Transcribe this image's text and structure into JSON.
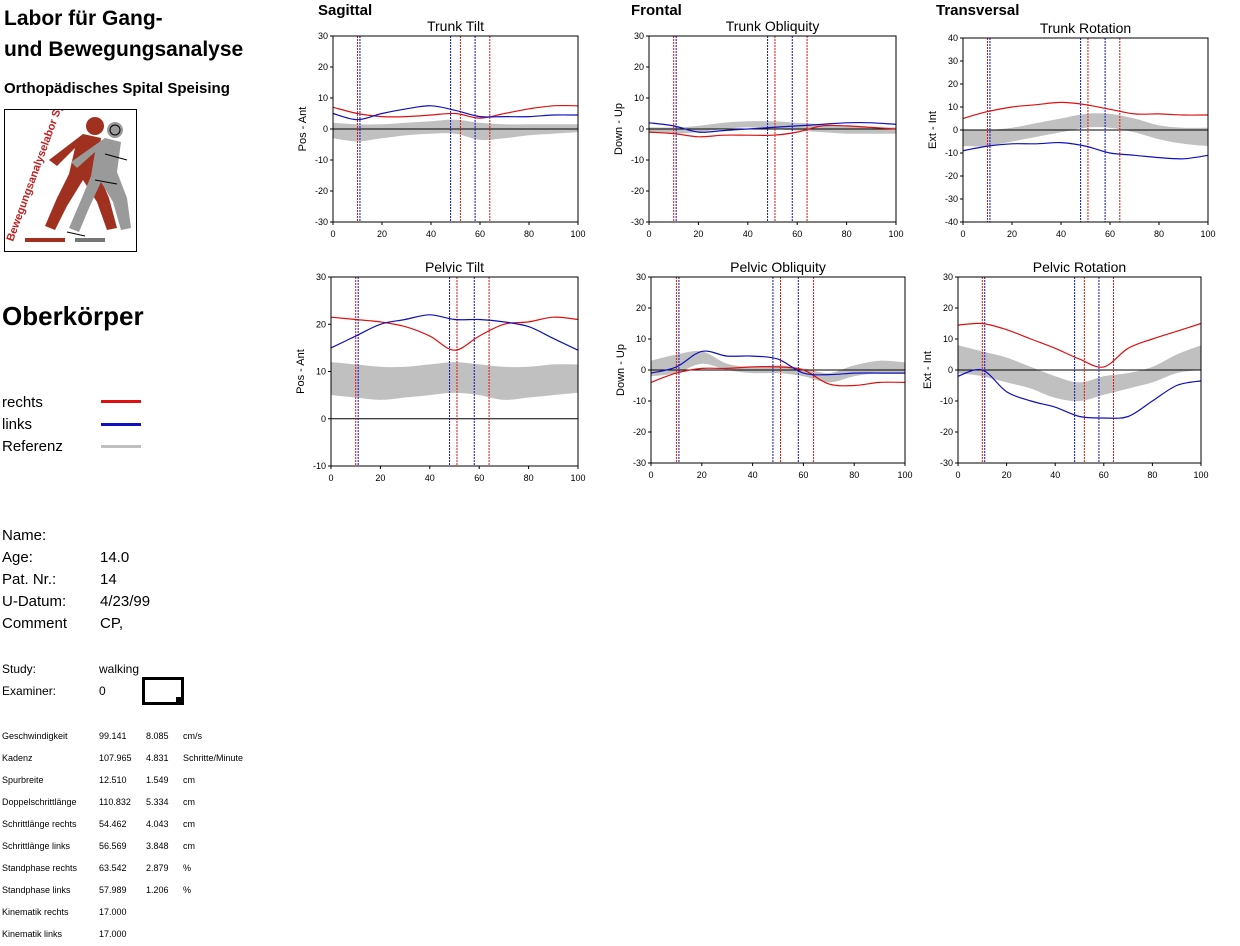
{
  "header": {
    "lab_title_line1": "Labor für Gang-",
    "lab_title_line2": "und Bewegungsanalyse",
    "hospital": "Orthopädisches Spital Speising",
    "logo_text": "Bewegungsanalyselabor Speising"
  },
  "section_title": "Oberkörper",
  "legend": [
    {
      "label": "rechts",
      "color": "#e01010"
    },
    {
      "label": "links",
      "color": "#1010c0"
    },
    {
      "label": "Referenz",
      "color": "#c0c0c0"
    }
  ],
  "patient": [
    {
      "label": "Name:",
      "value": ""
    },
    {
      "label": "Age:",
      "value": "14.0"
    },
    {
      "label": "Pat. Nr.:",
      "value": "14"
    },
    {
      "label": "U-Datum:",
      "value": "4/23/99"
    },
    {
      "label": "Comment",
      "value": "CP,"
    }
  ],
  "study": {
    "label": "Study:",
    "value": "walking"
  },
  "examiner": {
    "label": "Examiner:",
    "value": "0"
  },
  "stats": [
    {
      "name": "Geschwindigkeit",
      "mean": "99.141",
      "sd": "8.085",
      "unit": "cm/s"
    },
    {
      "name": "Kadenz",
      "mean": "107.965",
      "sd": "4.831",
      "unit": "Schritte/Minute"
    },
    {
      "name": "Spurbreite",
      "mean": "12.510",
      "sd": "1.549",
      "unit": "cm"
    },
    {
      "name": "Doppelschrittlänge",
      "mean": "110.832",
      "sd": "5.334",
      "unit": "cm"
    },
    {
      "name": "Schrittlänge rechts",
      "mean": "54.462",
      "sd": "4.043",
      "unit": "cm"
    },
    {
      "name": "Schrittlänge links",
      "mean": "56.569",
      "sd": "3.848",
      "unit": "cm"
    },
    {
      "name": "Standphase rechts",
      "mean": "63.542",
      "sd": "2.879",
      "unit": "%"
    },
    {
      "name": "Standphase links",
      "mean": "57.989",
      "sd": "1.206",
      "unit": "%"
    },
    {
      "name": "Kinematik rechts",
      "mean": "17.000",
      "sd": "",
      "unit": ""
    },
    {
      "name": "Kinematik links",
      "mean": "17.000",
      "sd": "",
      "unit": ""
    }
  ],
  "planes": [
    "Sagittal",
    "Frontal",
    "Transversal"
  ],
  "colors": {
    "right": "#e01010",
    "left": "#1010c0",
    "reference": "#c0c0c0"
  },
  "chart_data": [
    {
      "type": "line",
      "title": "Trunk Tilt",
      "ylabel": "Pos - Ant",
      "xlim": [
        0,
        100
      ],
      "ylim": [
        -30,
        30
      ],
      "yticks": [
        -30,
        -20,
        -10,
        0,
        10,
        20,
        30
      ],
      "xticks": [
        0,
        20,
        40,
        60,
        80,
        100
      ],
      "events": [
        {
          "x": 10,
          "color": "red"
        },
        {
          "x": 11,
          "color": "blue"
        },
        {
          "x": 48,
          "color": "blue"
        },
        {
          "x": 52,
          "color": "red"
        },
        {
          "x": 58,
          "color": "blue"
        },
        {
          "x": 64,
          "color": "red"
        }
      ],
      "series": [
        {
          "name": "rechts",
          "x": [
            0,
            10,
            20,
            30,
            40,
            50,
            60,
            70,
            80,
            90,
            100
          ],
          "values": [
            7,
            5,
            4,
            4,
            4.5,
            5,
            3.5,
            5,
            6.5,
            7.5,
            7.5
          ]
        },
        {
          "name": "links",
          "x": [
            0,
            10,
            20,
            30,
            40,
            50,
            60,
            70,
            80,
            90,
            100
          ],
          "values": [
            5,
            3,
            5,
            6.5,
            7.5,
            6,
            4,
            4,
            4,
            4.5,
            4.5
          ]
        }
      ],
      "reference": {
        "x": [
          0,
          10,
          20,
          30,
          40,
          50,
          60,
          70,
          80,
          90,
          100
        ],
        "upper": [
          2,
          1.5,
          1.5,
          2,
          2.5,
          3,
          2,
          1.5,
          1.5,
          1.5,
          1.5
        ],
        "lower": [
          -3,
          -4,
          -3,
          -2,
          -1.5,
          -1.5,
          -3.5,
          -3,
          -2,
          -1.5,
          -1
        ]
      }
    },
    {
      "type": "line",
      "title": "Trunk Obliquity",
      "ylabel": "Down - Up",
      "xlim": [
        0,
        100
      ],
      "ylim": [
        -30,
        30
      ],
      "yticks": [
        -30,
        -20,
        -10,
        0,
        10,
        20,
        30
      ],
      "xticks": [
        0,
        20,
        40,
        60,
        80,
        100
      ],
      "events": [
        {
          "x": 10,
          "color": "red"
        },
        {
          "x": 11,
          "color": "blue"
        },
        {
          "x": 48,
          "color": "blue"
        },
        {
          "x": 51,
          "color": "red"
        },
        {
          "x": 58,
          "color": "blue"
        },
        {
          "x": 64,
          "color": "red"
        }
      ],
      "series": [
        {
          "name": "rechts",
          "x": [
            0,
            10,
            20,
            30,
            40,
            50,
            60,
            70,
            80,
            90,
            100
          ],
          "values": [
            -1,
            -1.5,
            -2.5,
            -2,
            -2,
            -2,
            -1,
            1,
            1,
            0.5,
            0
          ]
        },
        {
          "name": "links",
          "x": [
            0,
            10,
            20,
            30,
            40,
            50,
            60,
            70,
            80,
            90,
            100
          ],
          "values": [
            2,
            1,
            -1,
            -0.5,
            0,
            0.5,
            1,
            1.5,
            2,
            2,
            1.5
          ]
        }
      ],
      "reference": {
        "x": [
          0,
          10,
          20,
          30,
          40,
          50,
          60,
          70,
          80,
          90,
          100
        ],
        "upper": [
          0.5,
          0.5,
          1,
          2,
          2.5,
          2.5,
          2,
          1.5,
          1,
          0.5,
          0.5
        ],
        "lower": [
          -1,
          -1.5,
          -1,
          0,
          0.5,
          0,
          -0.5,
          -1,
          -1.5,
          -1.5,
          -1.5
        ]
      }
    },
    {
      "type": "line",
      "title": "Trunk Rotation",
      "ylabel": "Ext - Int",
      "xlim": [
        0,
        100
      ],
      "ylim": [
        -40,
        40
      ],
      "yticks": [
        -40,
        -30,
        -20,
        -10,
        0,
        10,
        20,
        30,
        40
      ],
      "xticks": [
        0,
        20,
        40,
        60,
        80,
        100
      ],
      "events": [
        {
          "x": 10,
          "color": "red"
        },
        {
          "x": 11,
          "color": "blue"
        },
        {
          "x": 48,
          "color": "blue"
        },
        {
          "x": 51,
          "color": "red"
        },
        {
          "x": 58,
          "color": "blue"
        },
        {
          "x": 64,
          "color": "red"
        }
      ],
      "series": [
        {
          "name": "rechts",
          "x": [
            0,
            10,
            20,
            30,
            40,
            50,
            60,
            70,
            80,
            90,
            100
          ],
          "values": [
            5,
            8,
            10,
            11,
            12,
            11,
            9,
            7,
            7,
            6.5,
            6.5
          ]
        },
        {
          "name": "links",
          "x": [
            0,
            10,
            20,
            30,
            40,
            50,
            60,
            70,
            80,
            90,
            100
          ],
          "values": [
            -9,
            -7,
            -6,
            -6,
            -5.5,
            -7,
            -10,
            -11,
            -12,
            -12.5,
            -11
          ]
        }
      ],
      "reference": {
        "x": [
          0,
          10,
          20,
          30,
          40,
          50,
          60,
          70,
          80,
          90,
          100
        ],
        "upper": [
          0,
          0,
          1,
          3,
          5,
          7,
          7,
          5,
          2,
          1,
          1
        ],
        "lower": [
          -7,
          -7,
          -5,
          -3,
          -1,
          1,
          1,
          -1,
          -4,
          -6,
          -7
        ]
      }
    },
    {
      "type": "line",
      "title": "Pelvic Tilt",
      "ylabel": "Pos - Ant",
      "xlim": [
        0,
        100
      ],
      "ylim": [
        -10,
        30
      ],
      "yticks": [
        -10,
        0,
        10,
        20,
        30
      ],
      "xticks": [
        0,
        20,
        40,
        60,
        80,
        100
      ],
      "events": [
        {
          "x": 10,
          "color": "red"
        },
        {
          "x": 11,
          "color": "blue"
        },
        {
          "x": 48,
          "color": "blue"
        },
        {
          "x": 51,
          "color": "red"
        },
        {
          "x": 58,
          "color": "blue"
        },
        {
          "x": 64,
          "color": "red"
        }
      ],
      "series": [
        {
          "name": "rechts",
          "x": [
            0,
            10,
            20,
            30,
            40,
            50,
            60,
            70,
            80,
            90,
            100
          ],
          "values": [
            21.5,
            21,
            20.5,
            19.5,
            17.5,
            14.5,
            17.5,
            20,
            20.5,
            21.5,
            21
          ]
        },
        {
          "name": "links",
          "x": [
            0,
            10,
            20,
            30,
            40,
            50,
            60,
            70,
            80,
            90,
            100
          ],
          "values": [
            15,
            17.5,
            20,
            21,
            22,
            21,
            21,
            20.5,
            19.5,
            17,
            14.5
          ]
        }
      ],
      "reference": {
        "x": [
          0,
          10,
          20,
          30,
          40,
          50,
          60,
          70,
          80,
          90,
          100
        ],
        "upper": [
          12,
          11.5,
          11,
          11,
          11.5,
          12,
          11.5,
          11,
          11,
          11.5,
          11.5
        ],
        "lower": [
          5,
          4.5,
          4,
          4.5,
          5,
          5.5,
          5,
          4,
          4.5,
          5,
          5.5
        ]
      }
    },
    {
      "type": "line",
      "title": "Pelvic Obliquity",
      "ylabel": "Down - Up",
      "xlim": [
        0,
        100
      ],
      "ylim": [
        -30,
        30
      ],
      "yticks": [
        -30,
        -20,
        -10,
        0,
        10,
        20,
        30
      ],
      "xticks": [
        0,
        20,
        40,
        60,
        80,
        100
      ],
      "events": [
        {
          "x": 10,
          "color": "red"
        },
        {
          "x": 11,
          "color": "blue"
        },
        {
          "x": 48,
          "color": "blue"
        },
        {
          "x": 51,
          "color": "red"
        },
        {
          "x": 58,
          "color": "blue"
        },
        {
          "x": 64,
          "color": "red"
        }
      ],
      "series": [
        {
          "name": "rechts",
          "x": [
            0,
            10,
            20,
            30,
            40,
            50,
            60,
            70,
            80,
            90,
            100
          ],
          "values": [
            -4,
            -1,
            0.5,
            0.5,
            1,
            1,
            0,
            -4.5,
            -5,
            -4,
            -4
          ]
        },
        {
          "name": "links",
          "x": [
            0,
            10,
            20,
            30,
            40,
            50,
            60,
            70,
            80,
            90,
            100
          ],
          "values": [
            -1,
            1,
            6,
            4.5,
            4.5,
            3.5,
            -1,
            -1.5,
            -1,
            -1,
            -1
          ]
        }
      ],
      "reference": {
        "x": [
          0,
          10,
          20,
          30,
          40,
          50,
          60,
          70,
          80,
          90,
          100
        ],
        "upper": [
          3,
          5,
          6,
          2,
          1,
          1.5,
          0.5,
          -1,
          1.5,
          3,
          2.5
        ],
        "lower": [
          -2,
          -1,
          2,
          0,
          -1,
          -1,
          -2,
          -4,
          -2,
          -1,
          -1
        ]
      }
    },
    {
      "type": "line",
      "title": "Pelvic Rotation",
      "ylabel": "Ext - Int",
      "xlim": [
        0,
        100
      ],
      "ylim": [
        -30,
        30
      ],
      "yticks": [
        -30,
        -20,
        -10,
        0,
        10,
        20,
        30
      ],
      "xticks": [
        0,
        20,
        40,
        60,
        80,
        100
      ],
      "events": [
        {
          "x": 10,
          "color": "red"
        },
        {
          "x": 11,
          "color": "blue"
        },
        {
          "x": 48,
          "color": "blue"
        },
        {
          "x": 52,
          "color": "red"
        },
        {
          "x": 58,
          "color": "blue"
        },
        {
          "x": 64,
          "color": "red"
        }
      ],
      "series": [
        {
          "name": "rechts",
          "x": [
            0,
            10,
            20,
            30,
            40,
            50,
            60,
            70,
            80,
            90,
            100
          ],
          "values": [
            14.5,
            15,
            13,
            10,
            7,
            3.5,
            1,
            7,
            10,
            12.5,
            15
          ]
        },
        {
          "name": "links",
          "x": [
            0,
            10,
            20,
            30,
            40,
            50,
            60,
            70,
            80,
            90,
            100
          ],
          "values": [
            -2,
            0,
            -7,
            -10,
            -12,
            -15,
            -15.5,
            -15,
            -10,
            -5,
            -3.5
          ]
        }
      ],
      "reference": {
        "x": [
          0,
          10,
          20,
          30,
          40,
          50,
          60,
          70,
          80,
          90,
          100
        ],
        "upper": [
          8,
          6,
          4,
          1,
          -2,
          -4,
          -2,
          -1,
          1,
          5,
          8
        ],
        "lower": [
          -1,
          -2,
          -4,
          -6,
          -9,
          -10,
          -8,
          -6,
          -4,
          -1,
          0
        ]
      }
    }
  ]
}
